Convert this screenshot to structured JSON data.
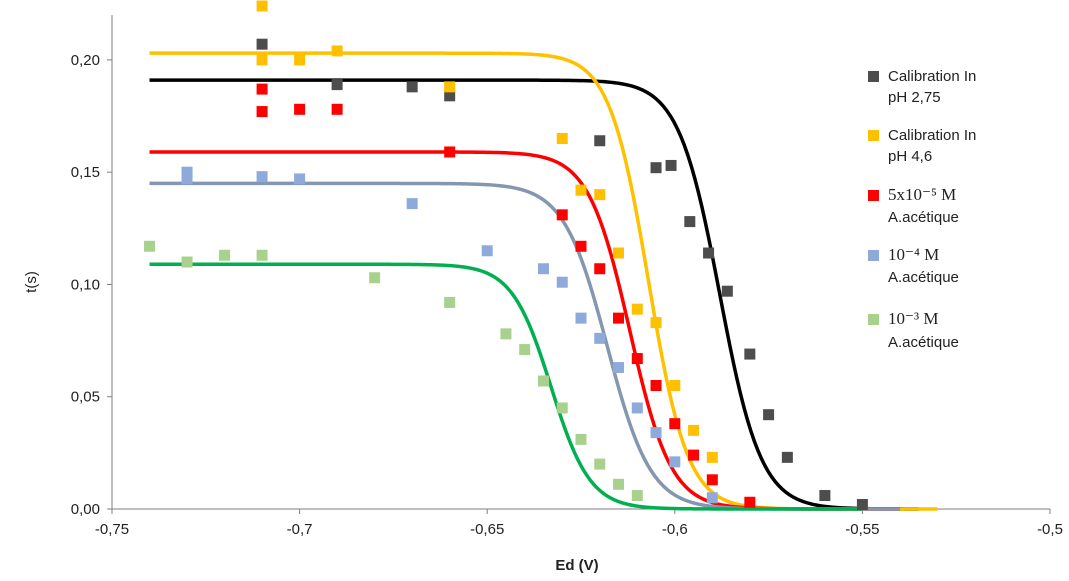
{
  "chart_data": {
    "type": "scatter",
    "xlabel": "Ed (V)",
    "ylabel": "t(s)",
    "xlim": [
      -0.75,
      -0.5
    ],
    "ylim": [
      0,
      0.22
    ],
    "x_ticks": [
      -0.75,
      -0.7,
      -0.65,
      -0.6,
      -0.55,
      -0.5
    ],
    "x_tick_labels": [
      "-0,75",
      "-0,7",
      "-0,65",
      "-0,6",
      "-0,55",
      "-0,5"
    ],
    "y_ticks": [
      0,
      0.05,
      0.1,
      0.15,
      0.2
    ],
    "y_tick_labels": [
      "0,00",
      "0,05",
      "0,10",
      "0,15",
      "0,20"
    ],
    "grid": false,
    "legend_position": "right",
    "series": [
      {
        "legend_lines": [
          "Calibration In",
          "pH 2,75"
        ],
        "color": "#4d4d4d",
        "curve_color": "#000000",
        "points": [
          [
            -0.71,
            0.207
          ],
          [
            -0.69,
            0.189
          ],
          [
            -0.67,
            0.188
          ],
          [
            -0.66,
            0.184
          ],
          [
            -0.62,
            0.164
          ],
          [
            -0.605,
            0.152
          ],
          [
            -0.601,
            0.153
          ],
          [
            -0.596,
            0.128
          ],
          [
            -0.591,
            0.114
          ],
          [
            -0.586,
            0.097
          ],
          [
            -0.58,
            0.069
          ],
          [
            -0.575,
            0.042
          ],
          [
            -0.57,
            0.023
          ],
          [
            -0.56,
            0.006
          ],
          [
            -0.55,
            0.002
          ]
        ],
        "fit": {
          "plateau": 0.191,
          "e_half": -0.588,
          "slope": 0.0055,
          "x_from": -0.74,
          "x_to": -0.535
        }
      },
      {
        "legend_lines": [
          "Calibration In",
          "pH 4,6"
        ],
        "color": "#ffc000",
        "curve_color": "#ffc000",
        "points": [
          [
            -0.71,
            0.224
          ],
          [
            -0.71,
            0.2
          ],
          [
            -0.7,
            0.2
          ],
          [
            -0.69,
            0.204
          ],
          [
            -0.66,
            0.188
          ],
          [
            -0.63,
            0.165
          ],
          [
            -0.625,
            0.142
          ],
          [
            -0.62,
            0.14
          ],
          [
            -0.615,
            0.114
          ],
          [
            -0.61,
            0.089
          ],
          [
            -0.605,
            0.083
          ],
          [
            -0.6,
            0.055
          ],
          [
            -0.595,
            0.035
          ],
          [
            -0.59,
            0.023
          ]
        ],
        "fit": {
          "plateau": 0.203,
          "e_half": -0.607,
          "slope": 0.0052,
          "x_from": -0.74,
          "x_to": -0.53
        }
      },
      {
        "legend_lines": [
          "5x10⁻⁵ M",
          "A.acétique"
        ],
        "color": "#ff0000",
        "curve_color": "#ff0000",
        "points": [
          [
            -0.71,
            0.187
          ],
          [
            -0.71,
            0.177
          ],
          [
            -0.7,
            0.178
          ],
          [
            -0.69,
            0.178
          ],
          [
            -0.66,
            0.159
          ],
          [
            -0.63,
            0.131
          ],
          [
            -0.625,
            0.117
          ],
          [
            -0.62,
            0.107
          ],
          [
            -0.615,
            0.085
          ],
          [
            -0.61,
            0.067
          ],
          [
            -0.605,
            0.055
          ],
          [
            -0.6,
            0.038
          ],
          [
            -0.595,
            0.024
          ],
          [
            -0.59,
            0.013
          ],
          [
            -0.58,
            0.003
          ]
        ],
        "fit": {
          "plateau": 0.159,
          "e_half": -0.612,
          "slope": 0.0055,
          "x_from": -0.74,
          "x_to": -0.54
        }
      },
      {
        "legend_lines": [
          "10⁻⁴ M",
          "A.acétique"
        ],
        "color": "#8eaadb",
        "curve_color": "#8497b0",
        "points": [
          [
            -0.73,
            0.15
          ],
          [
            -0.73,
            0.147
          ],
          [
            -0.71,
            0.148
          ],
          [
            -0.7,
            0.147
          ],
          [
            -0.67,
            0.136
          ],
          [
            -0.65,
            0.115
          ],
          [
            -0.635,
            0.107
          ],
          [
            -0.63,
            0.101
          ],
          [
            -0.625,
            0.085
          ],
          [
            -0.62,
            0.076
          ],
          [
            -0.615,
            0.063
          ],
          [
            -0.61,
            0.045
          ],
          [
            -0.605,
            0.034
          ],
          [
            -0.6,
            0.021
          ],
          [
            -0.59,
            0.005
          ]
        ],
        "fit": {
          "plateau": 0.145,
          "e_half": -0.618,
          "slope": 0.0058,
          "x_from": -0.74,
          "x_to": -0.54
        }
      },
      {
        "legend_lines": [
          "10⁻³ M",
          "A.acétique"
        ],
        "color": "#a9d18e",
        "curve_color": "#00b050",
        "points": [
          [
            -0.74,
            0.117
          ],
          [
            -0.73,
            0.11
          ],
          [
            -0.72,
            0.113
          ],
          [
            -0.71,
            0.113
          ],
          [
            -0.68,
            0.103
          ],
          [
            -0.66,
            0.092
          ],
          [
            -0.645,
            0.078
          ],
          [
            -0.64,
            0.071
          ],
          [
            -0.635,
            0.057
          ],
          [
            -0.63,
            0.045
          ],
          [
            -0.625,
            0.031
          ],
          [
            -0.62,
            0.02
          ],
          [
            -0.615,
            0.011
          ],
          [
            -0.61,
            0.006
          ]
        ],
        "fit": {
          "plateau": 0.109,
          "e_half": -0.633,
          "slope": 0.0052,
          "x_from": -0.74,
          "x_to": -0.55
        }
      }
    ]
  }
}
